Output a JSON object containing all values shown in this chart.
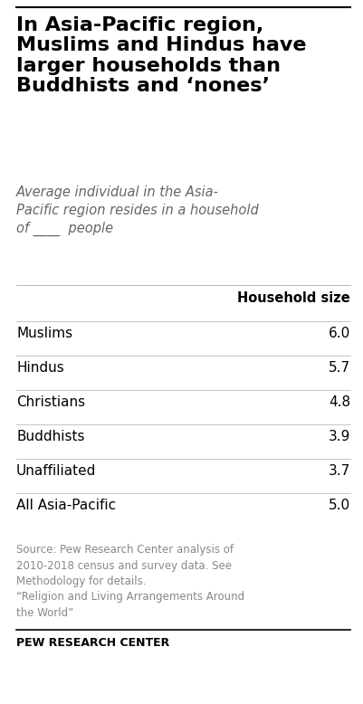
{
  "title": "In Asia-Pacific region,\nMuslims and Hindus have\nlarger households than\nBuddhists and ‘nones’",
  "subtitle": "Average individual in the Asia-\nPacific region resides in a household\nof ____  people",
  "col_header": "Household size",
  "rows": [
    {
      "label": "Muslims",
      "value": "6.0"
    },
    {
      "label": "Hindus",
      "value": "5.7"
    },
    {
      "label": "Christians",
      "value": "4.8"
    },
    {
      "label": "Buddhists",
      "value": "3.9"
    },
    {
      "label": "Unaffiliated",
      "value": "3.7"
    },
    {
      "label": "All Asia-Pacific",
      "value": "5.0"
    }
  ],
  "source_text": "Source: Pew Research Center analysis of\n2010-2018 census and survey data. See\nMethodology for details.\n“Religion and Living Arrangements Around\nthe World”",
  "footer": "PEW RESEARCH CENTER",
  "bg_color": "#ffffff",
  "title_color": "#000000",
  "subtitle_color": "#666666",
  "row_label_color": "#000000",
  "row_value_color": "#000000",
  "header_color": "#000000",
  "source_color": "#888888",
  "footer_color": "#000000",
  "top_line_color": "#000000",
  "sep_line_color": "#bbbbbb",
  "footer_line_color": "#000000",
  "fig_width": 4.02,
  "fig_height": 7.78,
  "dpi": 100,
  "title_fontsize": 16,
  "subtitle_fontsize": 10.5,
  "header_fontsize": 10.5,
  "row_fontsize": 11,
  "source_fontsize": 8.5,
  "footer_fontsize": 9
}
